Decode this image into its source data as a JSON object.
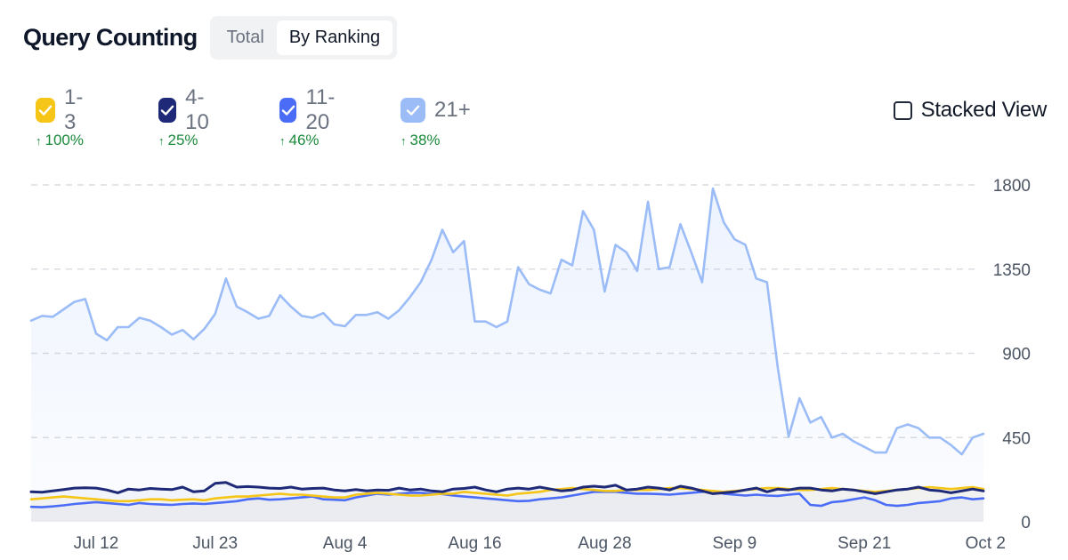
{
  "header": {
    "title": "Query Counting",
    "tabs": [
      {
        "label": "Total",
        "active": false
      },
      {
        "label": "By Ranking",
        "active": true
      }
    ]
  },
  "legend": {
    "items": [
      {
        "label": "1-3",
        "color": "#f5c518",
        "checked": true,
        "delta": "100%",
        "delta_direction": "up"
      },
      {
        "label": "4-10",
        "color": "#1e2a78",
        "checked": true,
        "delta": "25%",
        "delta_direction": "up"
      },
      {
        "label": "11-20",
        "color": "#4a6cf7",
        "checked": true,
        "delta": "46%",
        "delta_direction": "up"
      },
      {
        "label": "21+",
        "color": "#9bbcf7",
        "checked": true,
        "delta": "38%",
        "delta_direction": "up"
      }
    ]
  },
  "stacked_view": {
    "label": "Stacked View",
    "checked": false
  },
  "chart_data": {
    "type": "line",
    "x": [
      "Jul 6",
      "Jul 7",
      "Jul 8",
      "Jul 9",
      "Jul 10",
      "Jul 11",
      "Jul 12",
      "Jul 13",
      "Jul 14",
      "Jul 15",
      "Jul 16",
      "Jul 17",
      "Jul 18",
      "Jul 19",
      "Jul 20",
      "Jul 21",
      "Jul 22",
      "Jul 23",
      "Jul 24",
      "Jul 25",
      "Jul 26",
      "Jul 27",
      "Jul 28",
      "Jul 29",
      "Jul 30",
      "Jul 31",
      "Aug 1",
      "Aug 2",
      "Aug 3",
      "Aug 4",
      "Aug 5",
      "Aug 6",
      "Aug 7",
      "Aug 8",
      "Aug 9",
      "Aug 10",
      "Aug 11",
      "Aug 12",
      "Aug 13",
      "Aug 14",
      "Aug 15",
      "Aug 16",
      "Aug 17",
      "Aug 18",
      "Aug 19",
      "Aug 20",
      "Aug 21",
      "Aug 22",
      "Aug 23",
      "Aug 24",
      "Aug 25",
      "Aug 26",
      "Aug 27",
      "Aug 28",
      "Aug 29",
      "Aug 30",
      "Aug 31",
      "Sep 1",
      "Sep 2",
      "Sep 3",
      "Sep 4",
      "Sep 5",
      "Sep 6",
      "Sep 7",
      "Sep 8",
      "Sep 9",
      "Sep 10",
      "Sep 11",
      "Sep 12",
      "Sep 13",
      "Sep 14",
      "Sep 15",
      "Sep 16",
      "Sep 17",
      "Sep 18",
      "Sep 19",
      "Sep 20",
      "Sep 21",
      "Sep 22",
      "Sep 23",
      "Sep 24",
      "Sep 25",
      "Sep 26",
      "Sep 27",
      "Sep 28",
      "Sep 29",
      "Sep 30",
      "Oct 1",
      "Oct 2"
    ],
    "x_ticks": [
      "Jul 12",
      "Jul 23",
      "Aug 4",
      "Aug 16",
      "Aug 28",
      "Sep 9",
      "Sep 21",
      "Oct 2"
    ],
    "y_ticks": [
      0,
      450,
      900,
      1350,
      1800
    ],
    "ylim": [
      0,
      1800
    ],
    "grid": true,
    "series": [
      {
        "name": "21+",
        "color": "#9bbcf7",
        "values": [
          1075,
          1100,
          1095,
          1135,
          1175,
          1190,
          1005,
          970,
          1040,
          1040,
          1090,
          1075,
          1040,
          1000,
          1025,
          975,
          1030,
          1110,
          1300,
          1150,
          1120,
          1085,
          1100,
          1210,
          1150,
          1100,
          1090,
          1115,
          1055,
          1045,
          1105,
          1105,
          1120,
          1085,
          1130,
          1200,
          1280,
          1400,
          1560,
          1440,
          1500,
          1070,
          1070,
          1040,
          1070,
          1360,
          1270,
          1240,
          1220,
          1400,
          1370,
          1660,
          1560,
          1230,
          1480,
          1440,
          1340,
          1710,
          1350,
          1360,
          1590,
          1440,
          1280,
          1780,
          1600,
          1510,
          1480,
          1300,
          1280,
          820,
          455,
          660,
          530,
          560,
          450,
          470,
          430,
          400,
          370,
          370,
          500,
          520,
          500,
          450,
          450,
          410,
          360,
          450,
          470
        ]
      },
      {
        "name": "11-20",
        "color": "#4a6cf7",
        "values": [
          80,
          78,
          82,
          88,
          95,
          100,
          105,
          100,
          95,
          90,
          100,
          95,
          92,
          90,
          95,
          98,
          95,
          100,
          105,
          110,
          120,
          125,
          118,
          120,
          125,
          130,
          135,
          120,
          118,
          115,
          130,
          140,
          150,
          145,
          150,
          155,
          155,
          150,
          148,
          140,
          135,
          130,
          125,
          120,
          115,
          110,
          112,
          120,
          125,
          130,
          140,
          150,
          160,
          160,
          160,
          155,
          150,
          150,
          148,
          145,
          150,
          155,
          160,
          165,
          150,
          145,
          140,
          145,
          140,
          138,
          145,
          150,
          90,
          85,
          105,
          110,
          120,
          130,
          115,
          90,
          85,
          90,
          100,
          105,
          110,
          125,
          130,
          120,
          125
        ]
      },
      {
        "name": "1-3",
        "color": "#f5c518",
        "values": [
          120,
          125,
          130,
          135,
          130,
          125,
          120,
          115,
          110,
          110,
          115,
          120,
          120,
          115,
          118,
          120,
          115,
          125,
          130,
          135,
          135,
          140,
          145,
          150,
          145,
          145,
          140,
          135,
          130,
          130,
          145,
          150,
          155,
          150,
          145,
          140,
          140,
          145,
          150,
          150,
          160,
          155,
          150,
          145,
          140,
          150,
          155,
          160,
          170,
          175,
          180,
          175,
          170,
          165,
          165,
          170,
          170,
          170,
          175,
          180,
          180,
          175,
          170,
          165,
          160,
          165,
          170,
          175,
          180,
          180,
          175,
          170,
          170,
          175,
          180,
          175,
          170,
          165,
          160,
          165,
          170,
          175,
          180,
          185,
          180,
          175,
          180,
          185,
          175
        ]
      },
      {
        "name": "4-10",
        "color": "#1e2a78",
        "values": [
          160,
          158,
          165,
          172,
          180,
          182,
          180,
          170,
          155,
          175,
          170,
          178,
          175,
          172,
          185,
          160,
          165,
          205,
          210,
          185,
          188,
          185,
          180,
          178,
          185,
          175,
          178,
          180,
          170,
          165,
          172,
          165,
          170,
          168,
          180,
          170,
          175,
          165,
          160,
          175,
          178,
          185,
          170,
          160,
          175,
          180,
          175,
          185,
          175,
          165,
          170,
          185,
          190,
          185,
          195,
          170,
          175,
          185,
          180,
          170,
          190,
          180,
          165,
          150,
          155,
          160,
          170,
          180,
          160,
          175,
          170,
          180,
          180,
          170,
          165,
          175,
          170,
          160,
          150,
          160,
          170,
          175,
          185,
          170,
          165,
          155,
          165,
          175,
          165
        ]
      }
    ]
  }
}
